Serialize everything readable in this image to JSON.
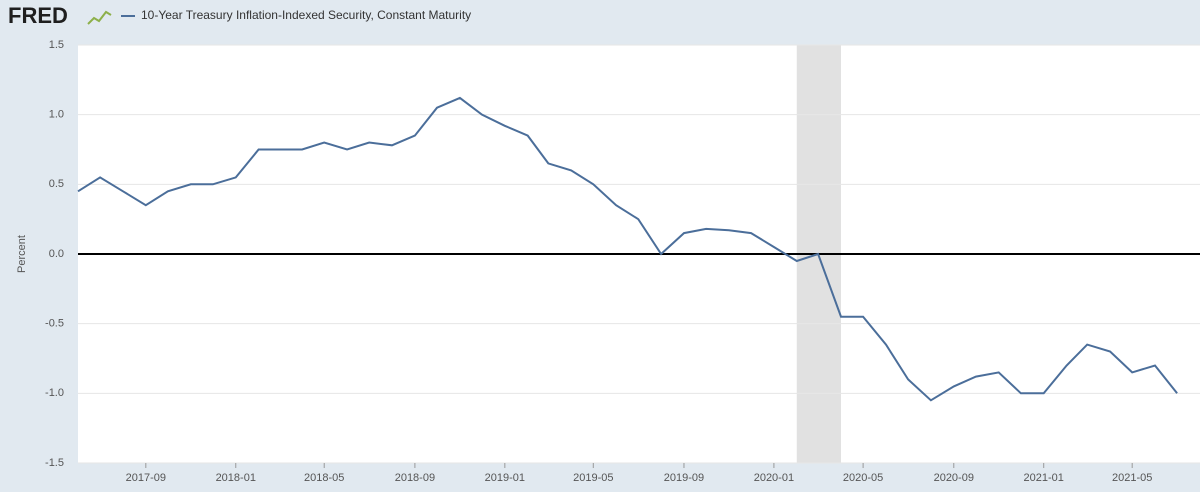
{
  "logo": "FRED",
  "chart_data": {
    "type": "line",
    "y_label": "Percent",
    "x": [
      "2017-06",
      "2017-07",
      "2017-08",
      "2017-09",
      "2017-10",
      "2017-11",
      "2017-12",
      "2018-01",
      "2018-02",
      "2018-03",
      "2018-04",
      "2018-05",
      "2018-06",
      "2018-07",
      "2018-08",
      "2018-09",
      "2018-10",
      "2018-11",
      "2018-12",
      "2019-01",
      "2019-02",
      "2019-03",
      "2019-04",
      "2019-05",
      "2019-06",
      "2019-07",
      "2019-08",
      "2019-09",
      "2019-10",
      "2019-11",
      "2019-12",
      "2020-01",
      "2020-02",
      "2020-03",
      "2020-04",
      "2020-05",
      "2020-06",
      "2020-07",
      "2020-08",
      "2020-09",
      "2020-10",
      "2020-11",
      "2020-12",
      "2021-01",
      "2021-02",
      "2021-03",
      "2021-04",
      "2021-05",
      "2021-06",
      "2021-07"
    ],
    "series": [
      {
        "name": "10-Year Treasury Inflation-Indexed Security, Constant Maturity",
        "color": "#4b6e9a",
        "values": [
          0.45,
          0.55,
          0.45,
          0.35,
          0.45,
          0.5,
          0.5,
          0.55,
          0.75,
          0.75,
          0.75,
          0.8,
          0.75,
          0.8,
          0.78,
          0.85,
          1.05,
          1.12,
          1.0,
          0.92,
          0.85,
          0.65,
          0.6,
          0.5,
          0.35,
          0.25,
          0.0,
          0.15,
          0.18,
          0.17,
          0.15,
          0.05,
          -0.05,
          0.0,
          -0.45,
          -0.45,
          -0.65,
          -0.9,
          -1.05,
          -0.95,
          -0.88,
          -0.85,
          -1.0,
          -1.0,
          -0.8,
          -0.65,
          -0.7,
          -0.85,
          -0.8,
          -1.0
        ]
      }
    ],
    "xlim": [
      "2017-06",
      "2021-08"
    ],
    "xticks": [
      "2017-09",
      "2018-01",
      "2018-05",
      "2018-09",
      "2019-01",
      "2019-05",
      "2019-09",
      "2020-01",
      "2020-05",
      "2020-09",
      "2021-01",
      "2021-05"
    ],
    "ylim": [
      -1.5,
      1.5
    ],
    "yticks": [
      {
        "value": -1.5,
        "label": "-1.5"
      },
      {
        "value": -1,
        "label": "-1.0"
      },
      {
        "value": -0.5,
        "label": "-0.5"
      },
      {
        "value": 0,
        "label": "0.0"
      },
      0.5,
      {
        "value": 1,
        "label": "1.0"
      },
      1.5
    ],
    "grid": true,
    "zero_line": true,
    "recessions": [
      {
        "start": "2020-02",
        "end": "2020-04"
      }
    ]
  }
}
